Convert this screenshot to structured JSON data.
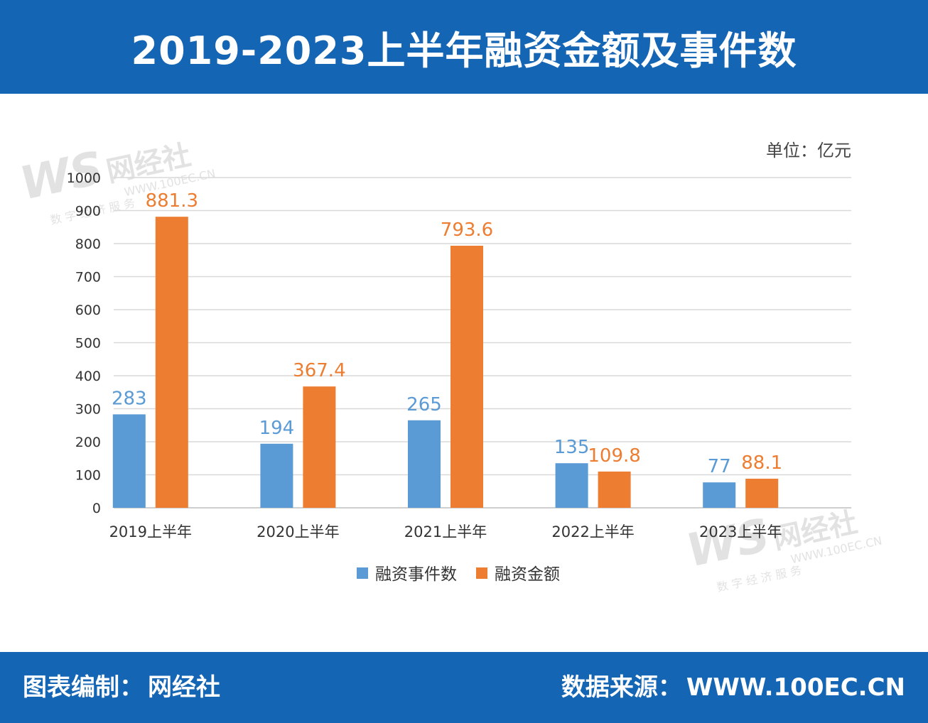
{
  "header": {
    "title": "2019-2023上半年融资金额及事件数"
  },
  "footer": {
    "left_label": "图表编制：",
    "left_value": "网经社",
    "right_label": "数据来源：",
    "right_value": "WWW.100EC.CN"
  },
  "watermark": {
    "logo_text": "WS",
    "brand": "网经社",
    "url": "WWW.100EC.CN",
    "slogan": "数 字 经 济 服 务"
  },
  "colors": {
    "header_bg": "#1565b5",
    "series_events": "#5b9bd5",
    "series_amount": "#ed7d31",
    "grid": "#d9d9d9"
  },
  "chart_data": {
    "type": "bar",
    "title": "2019-2023上半年融资金额及事件数",
    "unit": "单位：亿元",
    "categories": [
      "2019上半年",
      "2020上半年",
      "2021上半年",
      "2022上半年",
      "2023上半年"
    ],
    "series": [
      {
        "name": "融资事件数",
        "values": [
          283,
          194,
          265,
          135,
          77
        ],
        "color": "#5b9bd5"
      },
      {
        "name": "融资金额",
        "values": [
          881.3,
          367.4,
          793.6,
          109.8,
          88.1
        ],
        "color": "#ed7d31"
      }
    ],
    "ylim": [
      0,
      1000
    ],
    "yticks": [
      0,
      100,
      200,
      300,
      400,
      500,
      600,
      700,
      800,
      900,
      1000
    ],
    "grid": true,
    "legend_position": "bottom"
  }
}
